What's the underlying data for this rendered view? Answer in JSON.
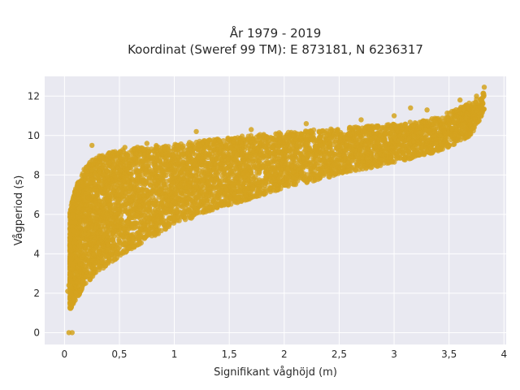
{
  "chart_data": {
    "type": "scatter",
    "title_line1": "År 1979 - 2019",
    "title_line2": "Koordinat (Sweref 99 TM): E 873181, N 6236317",
    "xlabel": "Signifikant våghöjd (m)",
    "ylabel": "Vågperiod (s)",
    "xlim": [
      -0.18,
      4.02
    ],
    "ylim": [
      -0.6,
      13.0
    ],
    "x_ticks": [
      0,
      0.5,
      1,
      1.5,
      2,
      2.5,
      3,
      3.5,
      4
    ],
    "x_tick_labels": [
      "0",
      "0,5",
      "1",
      "1,5",
      "2",
      "2,5",
      "3",
      "3,5",
      "4"
    ],
    "y_ticks": [
      0,
      2,
      4,
      6,
      8,
      10,
      12
    ],
    "y_tick_labels": [
      "0",
      "2",
      "4",
      "6",
      "8",
      "10",
      "12"
    ],
    "grid": true,
    "marker_color": "#D4A31E",
    "plot_background": "#E9E9F1",
    "envelope": {
      "x": [
        0.05,
        0.1,
        0.2,
        0.3,
        0.4,
        0.5,
        0.7,
        1.0,
        1.3,
        1.6,
        2.0,
        2.5,
        3.0,
        3.3,
        3.5,
        3.7,
        3.82
      ],
      "y_lower": [
        1.1,
        1.6,
        2.4,
        3.0,
        3.4,
        3.8,
        4.5,
        5.4,
        6.1,
        6.6,
        7.3,
        8.0,
        8.6,
        9.0,
        9.4,
        10.0,
        11.2
      ],
      "y_upper": [
        6.2,
        7.5,
        8.6,
        9.0,
        9.2,
        9.3,
        9.5,
        9.6,
        9.8,
        10.0,
        10.2,
        10.4,
        10.6,
        10.8,
        11.2,
        11.7,
        12.2
      ]
    },
    "outliers": [
      {
        "x": 0.04,
        "y": 0.0
      },
      {
        "x": 0.07,
        "y": 0.0
      },
      {
        "x": 0.03,
        "y": 2.1
      },
      {
        "x": 0.04,
        "y": 2.4
      },
      {
        "x": 0.25,
        "y": 9.5
      },
      {
        "x": 0.55,
        "y": 9.4
      },
      {
        "x": 0.75,
        "y": 9.6
      },
      {
        "x": 1.2,
        "y": 10.2
      },
      {
        "x": 1.7,
        "y": 10.3
      },
      {
        "x": 2.2,
        "y": 10.6
      },
      {
        "x": 2.7,
        "y": 10.8
      },
      {
        "x": 3.0,
        "y": 11.0
      },
      {
        "x": 3.15,
        "y": 11.4
      },
      {
        "x": 3.3,
        "y": 11.3
      },
      {
        "x": 3.6,
        "y": 11.8
      },
      {
        "x": 3.75,
        "y": 12.0
      },
      {
        "x": 3.82,
        "y": 12.45
      }
    ]
  }
}
